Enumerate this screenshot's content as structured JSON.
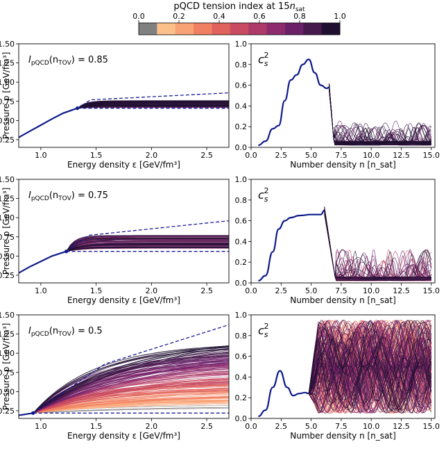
{
  "colorbar": {
    "title_prefix": "pQCD tension index at 15",
    "title_var": "n",
    "title_sub": "sat",
    "ticks": [
      "0.0",
      "0.2",
      "0.4",
      "0.6",
      "0.8",
      "1.0"
    ],
    "tick_values": [
      0.0,
      0.2,
      0.4,
      0.6,
      0.8,
      1.0
    ],
    "colors": [
      "#808080",
      "#fcc08a",
      "#f9a275",
      "#f18062",
      "#e0625c",
      "#c94b61",
      "#ad3a69",
      "#8d2c6d",
      "#6b2068",
      "#461a4d",
      "#1f1030"
    ]
  },
  "chart_data": [
    {
      "type": "line",
      "panel": "pressure-row-1",
      "annotation": "= 0.85",
      "annotation_prefix": "I",
      "annotation_sub": "pQCD",
      "annotation_arg": "(n",
      "annotation_arg_sub": "TOV",
      "annotation_arg_close": ")",
      "xlabel": "Energy density ε [GeV/fm³]",
      "ylabel": "Pressure p [GeV/fm³]",
      "xlim": [
        0.8,
        2.7
      ],
      "ylim": [
        0.15,
        1.5
      ],
      "xticks": [
        "1.0",
        "1.5",
        "2.0",
        "2.5"
      ],
      "xtick_values": [
        1.0,
        1.5,
        2.0,
        2.5
      ],
      "yticks": [
        "0.25",
        "0.50",
        "0.75",
        "1.00",
        "1.25",
        "1.50"
      ],
      "ytick_values": [
        0.25,
        0.5,
        0.75,
        1.0,
        1.25,
        1.5
      ],
      "tov_point": [
        1.33,
        0.66
      ],
      "main_curve": {
        "x": [
          0.8,
          0.9,
          1.0,
          1.1,
          1.2,
          1.33
        ],
        "y": [
          0.28,
          0.36,
          0.44,
          0.52,
          0.595,
          0.66
        ]
      },
      "upper_bound": {
        "x": [
          1.33,
          1.45,
          2.7
        ],
        "y": [
          0.66,
          0.77,
          0.86
        ]
      },
      "lower_bound": {
        "x": [
          1.33,
          2.7
        ],
        "y": [
          0.66,
          0.66
        ]
      },
      "band": {
        "lo": 0.67,
        "hi": 0.76,
        "color_index_min": 8
      }
    },
    {
      "type": "line",
      "panel": "cs2-row-1",
      "label_main": "c",
      "label_sub": "s",
      "label_sup": "2",
      "xlabel": "Number density n [n_sat]",
      "xlim": [
        0,
        15.3
      ],
      "ylim": [
        0,
        1.0
      ],
      "xticks": [
        "0.0",
        "2.5",
        "5.0",
        "7.5",
        "10.0",
        "12.5",
        "15.0"
      ],
      "xtick_values": [
        0,
        2.5,
        5,
        7.5,
        10,
        12.5,
        15
      ],
      "yticks": [
        "0.0",
        "0.2",
        "0.4",
        "0.6",
        "0.8",
        "1.0"
      ],
      "ytick_values": [
        0,
        0.2,
        0.4,
        0.6,
        0.8,
        1.0
      ],
      "main_curve": {
        "x": [
          0.6,
          1.2,
          1.8,
          2.3,
          2.8,
          3.3,
          3.8,
          4.3,
          4.8,
          5.3,
          5.8,
          6.3,
          6.5
        ],
        "y": [
          0.02,
          0.06,
          0.18,
          0.21,
          0.45,
          0.65,
          0.7,
          0.8,
          0.85,
          0.72,
          0.6,
          0.57,
          0.58
        ]
      },
      "drop_to": 6.9,
      "noise_amp": 0.2,
      "color_index_min": 8
    },
    {
      "type": "line",
      "panel": "pressure-row-2",
      "annotation": "= 0.75",
      "annotation_prefix": "I",
      "annotation_sub": "pQCD",
      "annotation_arg": "(n",
      "annotation_arg_sub": "TOV",
      "annotation_arg_close": ")",
      "xlabel": "Energy density ε [GeV/fm³]",
      "ylabel": "Pressure p [GeV/fm³]",
      "xlim": [
        0.8,
        2.7
      ],
      "ylim": [
        0.15,
        1.5
      ],
      "xticks": [
        "1.0",
        "1.5",
        "2.0",
        "2.5"
      ],
      "xtick_values": [
        1.0,
        1.5,
        2.0,
        2.5
      ],
      "yticks": [
        "0.25",
        "0.50",
        "0.75",
        "1.00",
        "1.25",
        "1.50"
      ],
      "ytick_values": [
        0.25,
        0.5,
        0.75,
        1.0,
        1.25,
        1.5
      ],
      "tov_point": [
        1.23,
        0.56
      ],
      "main_curve": {
        "x": [
          0.8,
          0.9,
          1.0,
          1.1,
          1.23
        ],
        "y": [
          0.28,
          0.36,
          0.43,
          0.5,
          0.56
        ]
      },
      "upper_bound": {
        "x": [
          1.23,
          1.43,
          2.7
        ],
        "y": [
          0.56,
          0.77,
          0.96
        ]
      },
      "lower_bound": {
        "x": [
          1.23,
          2.7
        ],
        "y": [
          0.56,
          0.56
        ]
      },
      "band": {
        "lo": 0.6,
        "hi": 0.78,
        "color_index_min": 6
      }
    },
    {
      "type": "line",
      "panel": "cs2-row-2",
      "label_main": "c",
      "label_sub": "s",
      "label_sup": "2",
      "xlabel": "Number density n [n_sat]",
      "xlim": [
        0,
        15.3
      ],
      "ylim": [
        0,
        1.0
      ],
      "xticks": [
        "0.0",
        "2.5",
        "5.0",
        "7.5",
        "10.0",
        "12.5",
        "15.0"
      ],
      "xtick_values": [
        0,
        2.5,
        5,
        7.5,
        10,
        12.5,
        15
      ],
      "yticks": [
        "0.0",
        "0.2",
        "0.4",
        "0.6",
        "0.8",
        "1.0"
      ],
      "ytick_values": [
        0,
        0.2,
        0.4,
        0.6,
        0.8,
        1.0
      ],
      "main_curve": {
        "x": [
          0.6,
          1.2,
          1.8,
          2.3,
          2.8,
          3.3,
          4.0,
          5.0,
          5.8,
          6.1
        ],
        "y": [
          0.02,
          0.07,
          0.3,
          0.52,
          0.6,
          0.63,
          0.65,
          0.66,
          0.66,
          0.7
        ]
      },
      "drop_to": 7.0,
      "noise_amp": 0.3,
      "color_index_min": 5
    },
    {
      "type": "line",
      "panel": "pressure-row-3",
      "annotation": "= 0.5",
      "annotation_prefix": "I",
      "annotation_sub": "pQCD",
      "annotation_arg": "(n",
      "annotation_arg_sub": "TOV",
      "annotation_arg_close": ")",
      "xlabel": "Energy density ε [GeV/fm³]",
      "ylabel": "Pressure p [GeV/fm³]",
      "xlim": [
        0.8,
        2.7
      ],
      "ylim": [
        0.15,
        1.5
      ],
      "xticks": [
        "1.0",
        "1.5",
        "2.0",
        "2.5"
      ],
      "xtick_values": [
        1.0,
        1.5,
        2.0,
        2.5
      ],
      "yticks": [
        "0.25",
        "0.50",
        "0.75",
        "1.00",
        "1.25",
        "1.50"
      ],
      "ytick_values": [
        0.25,
        0.5,
        0.75,
        1.0,
        1.25,
        1.5
      ],
      "tov_point": [
        0.93,
        0.22
      ],
      "main_curve": {
        "x": [
          0.8,
          0.93
        ],
        "y": [
          0.19,
          0.22
        ]
      },
      "upper_bound": {
        "x": [
          0.93,
          1.58,
          2.7
        ],
        "y": [
          0.22,
          0.86,
          1.37
        ]
      },
      "lower_bound": {
        "x": [
          0.93,
          2.7
        ],
        "y": [
          0.22,
          0.22
        ]
      },
      "band": {
        "lo": 0.28,
        "hi": 1.1,
        "color_index_min": 0
      }
    },
    {
      "type": "line",
      "panel": "cs2-row-3",
      "label_main": "c",
      "label_sub": "s",
      "label_sup": "2",
      "xlabel": "Number density n [n_sat]",
      "xlim": [
        0,
        15.3
      ],
      "ylim": [
        0,
        1.0
      ],
      "xticks": [
        "0.0",
        "2.5",
        "5.0",
        "7.5",
        "10.0",
        "12.5",
        "15.0"
      ],
      "xtick_values": [
        0,
        2.5,
        5,
        7.5,
        10,
        12.5,
        15
      ],
      "yticks": [
        "0.0",
        "0.2",
        "0.4",
        "0.6",
        "0.8",
        "1.0"
      ],
      "ytick_values": [
        0,
        0.2,
        0.4,
        0.6,
        0.8,
        1.0
      ],
      "main_curve": {
        "x": [
          0.6,
          1.2,
          1.8,
          2.4,
          3.0,
          3.5,
          4.0,
          4.5,
          4.8
        ],
        "y": [
          0.02,
          0.08,
          0.3,
          0.46,
          0.3,
          0.22,
          0.24,
          0.25,
          0.24
        ]
      },
      "drop_to": null,
      "noise_amp": 1.0,
      "color_index_min": 0
    }
  ]
}
